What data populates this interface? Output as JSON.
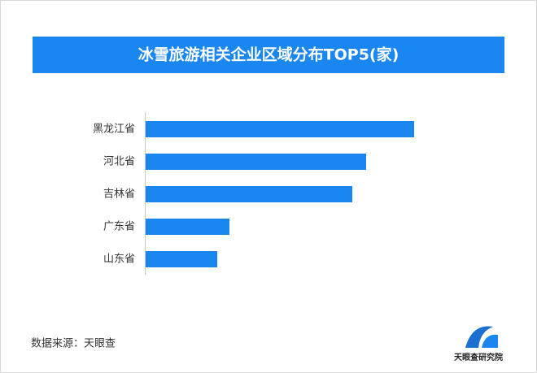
{
  "chart_data": {
    "type": "hbar",
    "title": "冰雪旅游相关企业区域分布TOP5(家)",
    "categories": [
      "黑龙江省",
      "河北省",
      "吉林省",
      "广东省",
      "山东省"
    ],
    "values": [
      330,
      271,
      254,
      103,
      88
    ],
    "color": "#1a86f0",
    "xlim": [
      0,
      330
    ],
    "source": "数据来源：天眼查",
    "logo_text": "天眼查研究院"
  }
}
